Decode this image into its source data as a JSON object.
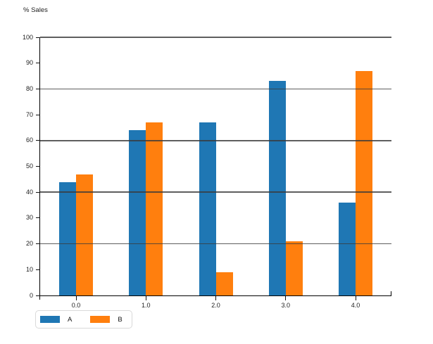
{
  "chart_data": {
    "type": "bar",
    "title": "% Sales",
    "categories": [
      "0.0",
      "1.0",
      "2.0",
      "3.0",
      "4.0"
    ],
    "series": [
      {
        "name": "A",
        "color": "#1f77b4",
        "values": [
          44,
          64,
          67,
          83,
          36
        ]
      },
      {
        "name": "B",
        "color": "#ff7f0e",
        "values": [
          47,
          67,
          9,
          21,
          87
        ]
      }
    ],
    "xlabel": "",
    "ylabel": "% Sales",
    "ylim": [
      0,
      100
    ],
    "y_ticks": [
      0,
      10,
      20,
      30,
      40,
      50,
      60,
      70,
      80,
      90,
      100
    ],
    "gridline_values": [
      20,
      40,
      60,
      80,
      100
    ],
    "grid": "horizontal, drawn over bars",
    "legend_position": "bottom-left"
  }
}
